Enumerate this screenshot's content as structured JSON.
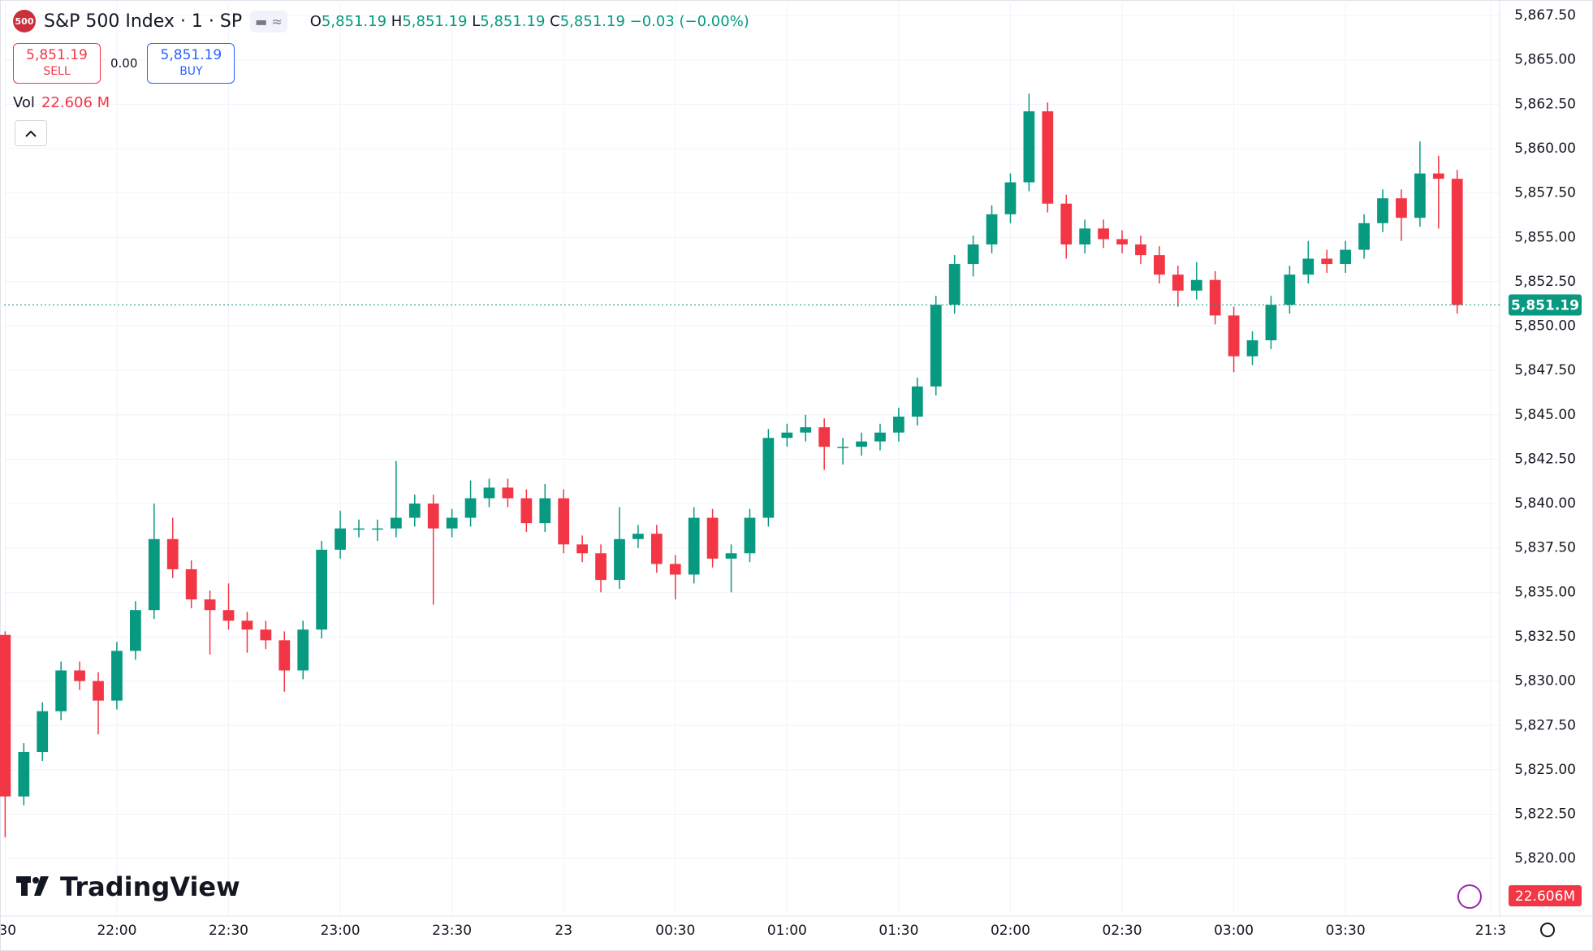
{
  "header": {
    "logo": "500",
    "symbol": "S&P 500 Index · 1 · SP",
    "open_label": "O",
    "open": "5,851.19",
    "high_label": "H",
    "high": "5,851.19",
    "low_label": "L",
    "low": "5,851.19",
    "close_label": "C",
    "close": "5,851.19",
    "change": "−0.03 (−0.00%)",
    "sell_price": "5,851.19",
    "sell_label": "SELL",
    "spread": "0.00",
    "buy_price": "5,851.19",
    "buy_label": "BUY",
    "volume_label": "Vol",
    "volume": "22.606 M",
    "watermark": "TradingView"
  },
  "chart_data": {
    "type": "candlestick",
    "up_color": "#089981",
    "down_color": "#f23645",
    "grid": true,
    "last_price": 5851.19,
    "last_price_label": "5,851.19",
    "last_volume_label": "22.606M",
    "x": [
      0,
      5,
      10,
      15,
      20,
      25,
      30,
      35,
      40,
      45,
      50,
      55,
      60,
      65,
      70,
      75,
      80,
      85,
      90,
      95,
      100,
      105,
      110,
      115,
      120,
      125,
      130,
      135,
      140,
      145,
      150,
      155,
      160,
      165,
      170,
      175,
      180,
      185,
      190,
      195,
      200,
      205,
      210,
      215,
      220,
      225,
      230,
      235,
      240,
      245,
      250,
      255,
      260,
      265,
      270,
      275,
      280,
      285,
      290,
      295,
      300,
      305,
      310,
      315,
      320,
      325,
      330,
      335,
      340,
      345,
      350,
      355,
      360,
      365,
      370,
      375,
      380,
      385,
      390
    ],
    "open": [
      5832.6,
      5823.5,
      5826.0,
      5828.3,
      5830.6,
      5830.0,
      5828.9,
      5831.7,
      5834.0,
      5838.0,
      5836.3,
      5834.6,
      5834.0,
      5833.4,
      5832.9,
      5832.3,
      5830.6,
      5832.9,
      5837.4,
      5838.6,
      5838.6,
      5838.6,
      5839.2,
      5840.0,
      5838.6,
      5839.2,
      5840.3,
      5840.9,
      5840.3,
      5838.9,
      5840.3,
      5837.7,
      5837.2,
      5835.7,
      5838.0,
      5838.3,
      5836.6,
      5836.0,
      5839.2,
      5836.9,
      5837.2,
      5839.2,
      5843.7,
      5844.0,
      5844.3,
      5843.2,
      5843.2,
      5843.5,
      5844.0,
      5844.9,
      5846.6,
      5851.2,
      5853.5,
      5854.6,
      5856.3,
      5858.1,
      5862.1,
      5856.9,
      5854.6,
      5855.5,
      5854.9,
      5854.6,
      5854.0,
      5852.9,
      5852.0,
      5852.6,
      5850.6,
      5848.3,
      5849.2,
      5851.2,
      5852.9,
      5853.8,
      5853.5,
      5854.3,
      5855.8,
      5857.2,
      5856.1,
      5858.6,
      5858.3
    ],
    "high": [
      5832.8,
      5826.5,
      5828.8,
      5831.1,
      5831.1,
      5830.5,
      5832.2,
      5834.5,
      5840.0,
      5839.2,
      5836.8,
      5835.1,
      5835.5,
      5833.9,
      5833.4,
      5832.8,
      5833.4,
      5837.9,
      5839.6,
      5839.1,
      5839.1,
      5842.4,
      5840.5,
      5840.5,
      5839.7,
      5841.3,
      5841.4,
      5841.4,
      5840.8,
      5841.1,
      5840.8,
      5838.2,
      5837.7,
      5839.8,
      5838.8,
      5838.8,
      5837.1,
      5839.8,
      5839.7,
      5837.7,
      5839.7,
      5844.2,
      5844.5,
      5845.0,
      5844.8,
      5843.7,
      5844.0,
      5844.5,
      5845.4,
      5847.1,
      5851.7,
      5854.0,
      5855.1,
      5856.8,
      5858.6,
      5863.1,
      5862.6,
      5857.4,
      5856.0,
      5856.0,
      5855.4,
      5855.1,
      5854.5,
      5853.4,
      5853.6,
      5853.1,
      5851.1,
      5849.7,
      5851.7,
      5853.4,
      5854.8,
      5854.3,
      5854.8,
      5856.3,
      5857.7,
      5857.7,
      5860.4,
      5859.6,
      5858.8
    ],
    "low": [
      5821.2,
      5823.0,
      5825.5,
      5827.8,
      5829.5,
      5827.0,
      5828.4,
      5831.2,
      5833.5,
      5835.8,
      5834.1,
      5831.5,
      5832.9,
      5831.6,
      5831.8,
      5829.4,
      5830.1,
      5832.4,
      5836.9,
      5838.1,
      5837.9,
      5838.1,
      5838.7,
      5834.3,
      5838.1,
      5838.7,
      5839.8,
      5839.8,
      5838.4,
      5838.4,
      5837.2,
      5836.7,
      5835.0,
      5835.2,
      5837.5,
      5836.1,
      5834.6,
      5835.5,
      5836.4,
      5835.0,
      5836.7,
      5838.7,
      5843.2,
      5843.5,
      5841.9,
      5842.2,
      5842.7,
      5843.0,
      5843.5,
      5844.4,
      5846.1,
      5850.7,
      5852.8,
      5854.1,
      5855.8,
      5857.6,
      5856.4,
      5853.8,
      5854.1,
      5854.4,
      5854.1,
      5853.5,
      5852.4,
      5851.1,
      5851.5,
      5850.1,
      5847.4,
      5847.8,
      5848.7,
      5850.7,
      5852.4,
      5853.0,
      5853.0,
      5853.8,
      5855.3,
      5854.8,
      5855.6,
      5855.5,
      5850.7
    ],
    "close": [
      5823.5,
      5826.0,
      5828.3,
      5830.6,
      5830.0,
      5828.9,
      5831.7,
      5834.0,
      5838.0,
      5836.3,
      5834.6,
      5834.0,
      5833.4,
      5832.9,
      5832.3,
      5830.6,
      5832.9,
      5837.4,
      5838.6,
      5838.6,
      5838.6,
      5839.2,
      5840.0,
      5838.6,
      5839.2,
      5840.3,
      5840.9,
      5840.3,
      5838.9,
      5840.3,
      5837.7,
      5837.2,
      5835.7,
      5838.0,
      5838.3,
      5836.6,
      5836.0,
      5839.2,
      5836.9,
      5837.2,
      5839.2,
      5843.7,
      5844.0,
      5844.3,
      5843.2,
      5843.2,
      5843.5,
      5844.0,
      5844.9,
      5846.6,
      5851.2,
      5853.5,
      5854.6,
      5856.3,
      5858.1,
      5862.1,
      5856.9,
      5854.6,
      5855.5,
      5854.9,
      5854.6,
      5854.0,
      5852.9,
      5852.0,
      5852.6,
      5850.6,
      5848.3,
      5849.2,
      5851.2,
      5852.9,
      5853.8,
      5853.5,
      5854.3,
      5855.8,
      5857.2,
      5856.1,
      5858.6,
      5858.3,
      5851.19
    ],
    "xlim": [
      -0.3,
      401.4
    ],
    "xticks": [
      {
        "value": 0,
        "label": ":30"
      },
      {
        "value": 30,
        "label": "22:00"
      },
      {
        "value": 60,
        "label": "22:30"
      },
      {
        "value": 90,
        "label": "23:00"
      },
      {
        "value": 120,
        "label": "23:30"
      },
      {
        "value": 150,
        "label": "23"
      },
      {
        "value": 180,
        "label": "00:30"
      },
      {
        "value": 210,
        "label": "01:00"
      },
      {
        "value": 240,
        "label": "01:30"
      },
      {
        "value": 270,
        "label": "02:00"
      },
      {
        "value": 300,
        "label": "02:30"
      },
      {
        "value": 330,
        "label": "03:00"
      },
      {
        "value": 360,
        "label": "03:30"
      },
      {
        "value": 399,
        "label": "21:3"
      }
    ],
    "ylim": [
      5816.85,
      5868.19
    ],
    "yticks": [
      {
        "value": 5820,
        "label": "5,820.00"
      },
      {
        "value": 5822.5,
        "label": "5,822.50"
      },
      {
        "value": 5825,
        "label": "5,825.00"
      },
      {
        "value": 5827.5,
        "label": "5,827.50"
      },
      {
        "value": 5830,
        "label": "5,830.00"
      },
      {
        "value": 5832.5,
        "label": "5,832.50"
      },
      {
        "value": 5835,
        "label": "5,835.00"
      },
      {
        "value": 5837.5,
        "label": "5,837.50"
      },
      {
        "value": 5840,
        "label": "5,840.00"
      },
      {
        "value": 5842.5,
        "label": "5,842.50"
      },
      {
        "value": 5845,
        "label": "5,845.00"
      },
      {
        "value": 5847.5,
        "label": "5,847.50"
      },
      {
        "value": 5850,
        "label": "5,850.00"
      },
      {
        "value": 5852.5,
        "label": "5,852.50"
      },
      {
        "value": 5855,
        "label": "5,855.00"
      },
      {
        "value": 5857.5,
        "label": "5,857.50"
      },
      {
        "value": 5860,
        "label": "5,860.00"
      },
      {
        "value": 5862.5,
        "label": "5,862.50"
      },
      {
        "value": 5865,
        "label": "5,865.00"
      },
      {
        "value": 5867.5,
        "label": "5,867.50"
      }
    ]
  }
}
